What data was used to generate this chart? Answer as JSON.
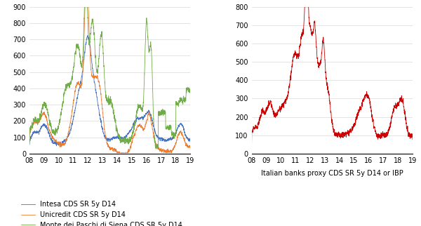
{
  "left_ylim": [
    0,
    900
  ],
  "left_yticks": [
    0,
    100,
    200,
    300,
    400,
    500,
    600,
    700,
    800,
    900
  ],
  "right_ylim": [
    0,
    800
  ],
  "right_yticks": [
    0,
    100,
    200,
    300,
    400,
    500,
    600,
    700,
    800
  ],
  "color_intesa": "#4472C4",
  "color_unicredit": "#ED7D31",
  "color_monte": "#70AD47",
  "color_ibp": "#CC0000",
  "legend_labels": [
    "Intesa CDS SR 5y D14",
    "Unicredit CDS SR 5y D14",
    "Monte dei Paschi di Siena CDS SR 5y D14"
  ],
  "right_xlabel": "Italian banks proxy CDS SR 5y D14 or IBP",
  "background_color": "#FFFFFF",
  "grid_color": "#D9D9D9",
  "linewidth": 0.6,
  "fontsize_ticks": 7,
  "fontsize_legend": 7,
  "fontsize_xlabel": 7
}
